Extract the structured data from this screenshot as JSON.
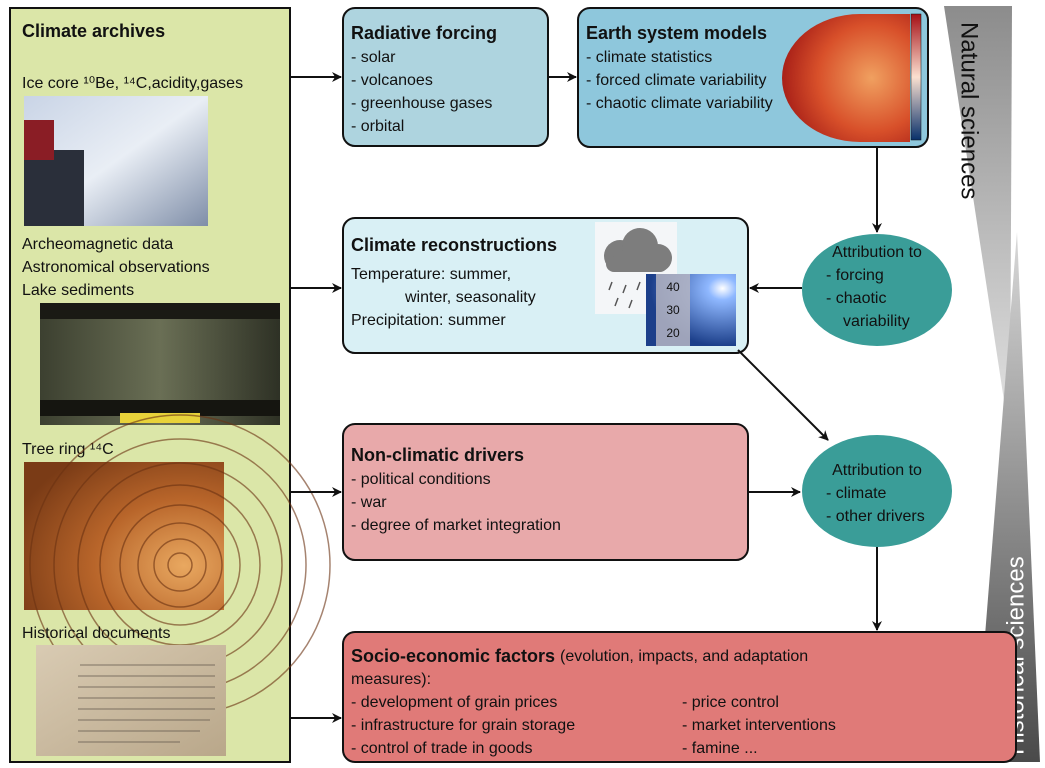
{
  "archives": {
    "title": "Climate archives",
    "items": [
      "Ice core ¹⁰Be, ¹⁴C,acidity,gases",
      "Archeomagnetic data",
      "Astronomical observations",
      "Lake sediments",
      "Tree ring ¹⁴C",
      "Historical documents"
    ]
  },
  "radiative_forcing": {
    "title": "Radiative forcing",
    "items": [
      "- solar",
      "- volcanoes",
      "- greenhouse gases",
      "- orbital"
    ]
  },
  "earth_system_models": {
    "title": "Earth system models",
    "items": [
      "- climate statistics",
      "- forced climate variability",
      "- chaotic climate variability"
    ]
  },
  "climate_reconstructions": {
    "title": "Climate reconstructions",
    "lines": [
      "Temperature: summer,",
      "winter, seasonality",
      "Precipitation: summer"
    ],
    "thermometer_labels": [
      "40",
      "30",
      "20"
    ]
  },
  "attribution_forcing": {
    "title": "Attribution to",
    "items": [
      "- forcing",
      "- chaotic",
      "variability"
    ]
  },
  "non_climatic_drivers": {
    "title": "Non-climatic drivers",
    "items": [
      "- political conditions",
      "- war",
      "- degree of market integration"
    ]
  },
  "attribution_climate": {
    "title": "Attribution to",
    "items": [
      "- climate",
      "- other drivers"
    ]
  },
  "socio_economic": {
    "title": "Socio-economic factors",
    "note": [
      "(evolution, impacts, and adaptation",
      "measures):"
    ],
    "left": [
      "- development of grain prices",
      "- infrastructure for grain storage",
      "- control of trade in goods"
    ],
    "right": [
      "- price control",
      "- market interventions",
      "- famine ..."
    ]
  },
  "side_labels": {
    "natural": "Natural sciences",
    "historical": "Historical sciences"
  }
}
